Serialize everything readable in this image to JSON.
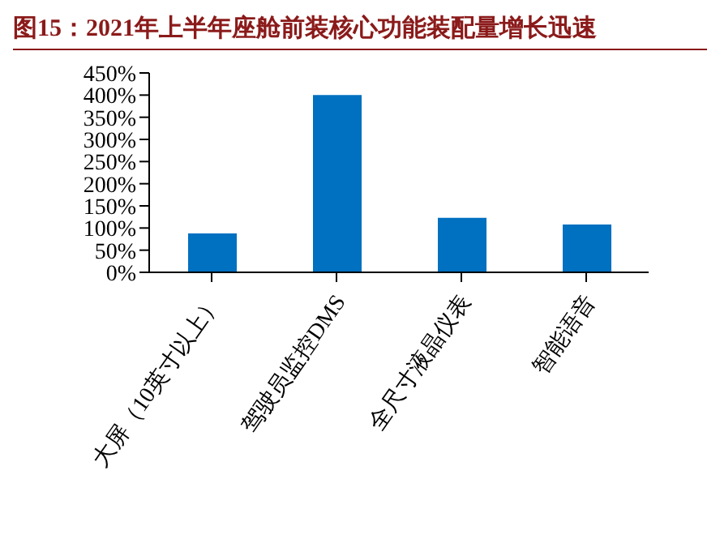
{
  "chart_data": {
    "type": "bar",
    "title": "图15：2021年上半年座舱前装核心功能装配量增长迅速",
    "categories": [
      "大屏（10英寸以上）",
      "驾驶员监控DMS",
      "全尺寸液晶仪表",
      "智能语音"
    ],
    "values": [
      88,
      400,
      123,
      108
    ],
    "color": "#0070c0",
    "ylim": [
      0,
      450
    ],
    "yticks": [
      {
        "value": 0,
        "label": "0%"
      },
      {
        "value": 50,
        "label": "50%"
      },
      {
        "value": 100,
        "label": "100%"
      },
      {
        "value": 150,
        "label": "150%"
      },
      {
        "value": 200,
        "label": "200%"
      },
      {
        "value": 250,
        "label": "250%"
      },
      {
        "value": 300,
        "label": "300%"
      },
      {
        "value": 350,
        "label": "350%"
      },
      {
        "value": 400,
        "label": "400%"
      },
      {
        "value": 450,
        "label": "450%"
      }
    ],
    "grid": false,
    "legend": false
  }
}
